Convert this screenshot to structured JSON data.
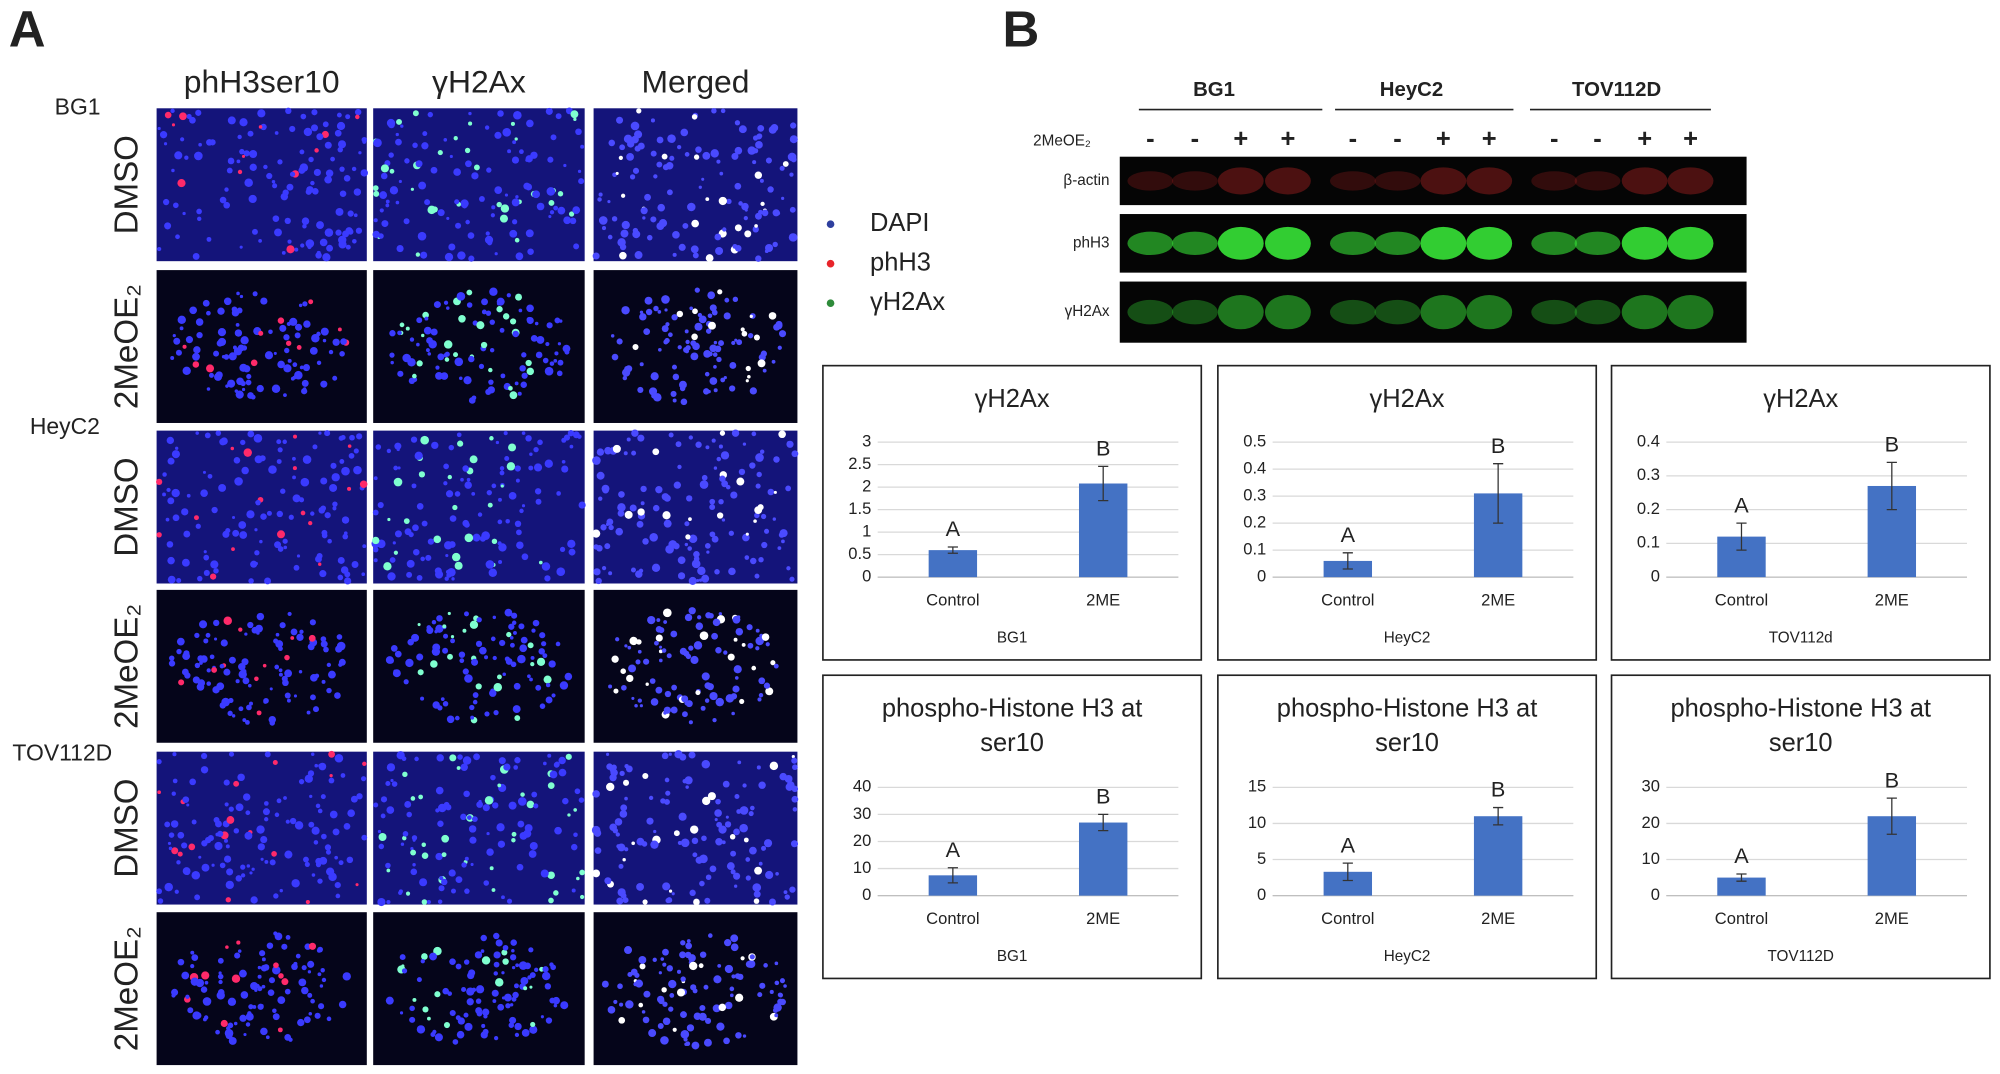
{
  "panel_a": {
    "label": "A",
    "columns": [
      "phH3ser10",
      "γH2Ax",
      "Merged"
    ],
    "cell_lines": [
      "BG1",
      "HeyC2",
      "TOV112D"
    ],
    "treatments": [
      "DMSO",
      "2MeOE₂"
    ],
    "legend": [
      "DAPI",
      "phH3",
      "γH2Ax"
    ]
  },
  "panel_b": {
    "label": "B",
    "blot_groups": [
      "BG1",
      "HeyC2",
      "TOV112D"
    ],
    "treatment_label": "2MeOE₂",
    "lanes": [
      "-",
      "-",
      "+",
      "+",
      "-",
      "-",
      "+",
      "+",
      "-",
      "-",
      "+",
      "+"
    ],
    "blot_rows": [
      "β-actin",
      "phH3",
      "γH2Ax"
    ]
  },
  "chart_data": [
    {
      "type": "bar",
      "title": [
        "γH2Ax"
      ],
      "categories": [
        "Control",
        "2ME"
      ],
      "x_label": "BG1",
      "series": [
        {
          "color": "#4472c4",
          "values": [
            0.6,
            2.08
          ],
          "errors": [
            0.07,
            0.38
          ]
        }
      ],
      "significance": [
        "A",
        "B"
      ],
      "ylim": [
        0,
        3
      ],
      "yticks": [
        0,
        0.5,
        1,
        1.5,
        2,
        2.5,
        3
      ],
      "grid": true
    },
    {
      "type": "bar",
      "title": [
        "γH2Ax"
      ],
      "categories": [
        "Control",
        "2ME"
      ],
      "x_label": "HeyC2",
      "series": [
        {
          "color": "#4472c4",
          "values": [
            0.06,
            0.31
          ],
          "errors": [
            0.03,
            0.11
          ]
        }
      ],
      "significance": [
        "A",
        "B"
      ],
      "ylim": [
        0,
        0.5
      ],
      "yticks": [
        0,
        0.1,
        0.2,
        0.3,
        0.4,
        0.5
      ],
      "grid": true
    },
    {
      "type": "bar",
      "title": [
        "γH2Ax"
      ],
      "categories": [
        "Control",
        "2ME"
      ],
      "x_label": "TOV112d",
      "series": [
        {
          "color": "#4472c4",
          "values": [
            0.12,
            0.27
          ],
          "errors": [
            0.04,
            0.07
          ]
        }
      ],
      "significance": [
        "A",
        "B"
      ],
      "ylim": [
        0,
        0.4
      ],
      "yticks": [
        0,
        0.1,
        0.2,
        0.3,
        0.4
      ],
      "grid": true
    },
    {
      "type": "bar",
      "title": [
        "phospho-Histone H3 at",
        "ser10"
      ],
      "categories": [
        "Control",
        "2ME"
      ],
      "x_label": "BG1",
      "series": [
        {
          "color": "#4472c4",
          "values": [
            7.5,
            27
          ],
          "errors": [
            2.8,
            3
          ]
        }
      ],
      "significance": [
        "A",
        "B"
      ],
      "ylim": [
        0,
        40
      ],
      "yticks": [
        0,
        10,
        20,
        30,
        40
      ],
      "grid": true
    },
    {
      "type": "bar",
      "title": [
        "phospho-Histone H3 at",
        "ser10"
      ],
      "categories": [
        "Control",
        "2ME"
      ],
      "x_label": "HeyC2",
      "series": [
        {
          "color": "#4472c4",
          "values": [
            3.3,
            11
          ],
          "errors": [
            1.2,
            1.2
          ]
        }
      ],
      "significance": [
        "A",
        "B"
      ],
      "ylim": [
        0,
        15
      ],
      "yticks": [
        0,
        5,
        10,
        15
      ],
      "grid": true
    },
    {
      "type": "bar",
      "title": [
        "phospho-Histone H3 at",
        "ser10"
      ],
      "categories": [
        "Control",
        "2ME"
      ],
      "x_label": "TOV112D",
      "series": [
        {
          "color": "#4472c4",
          "values": [
            5,
            22
          ],
          "errors": [
            1,
            5
          ]
        }
      ],
      "significance": [
        "A",
        "B"
      ],
      "ylim": [
        0,
        30
      ],
      "yticks": [
        0,
        10,
        20,
        30
      ],
      "grid": true
    }
  ]
}
